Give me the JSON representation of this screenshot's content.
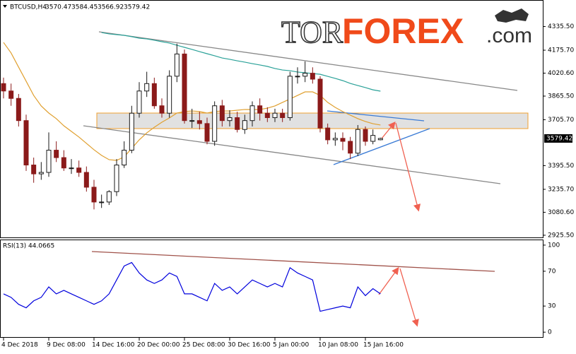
{
  "logo": {
    "part1": "TOR",
    "part2": "FOREX",
    "part3": ".com"
  },
  "chart_data": [
    {
      "type": "candlestick",
      "symbol": "BTCUSD,H4",
      "header_values": [
        3570.47,
        3584.45,
        3566.92,
        3579.42
      ],
      "ylim": [
        2906,
        4510
      ],
      "yticks": [
        {
          "value": 4335.5,
          "label": "4335.50"
        },
        {
          "value": 4175.7,
          "label": "4175.70"
        },
        {
          "value": 4020.6,
          "label": "4020.60"
        },
        {
          "value": 3865.5,
          "label": "3865.50"
        },
        {
          "value": 3705.7,
          "label": "3705.70"
        },
        {
          "value": 3395.5,
          "label": "3395.50"
        },
        {
          "value": 3235.7,
          "label": "3235.70"
        },
        {
          "value": 3080.6,
          "label": "3080.60"
        },
        {
          "value": 2925.5,
          "label": "2925.50"
        }
      ],
      "up_color": "#1a1a1a",
      "down_color": "#8b1a1a",
      "open": [
        3950,
        3900,
        3850,
        3700,
        3400,
        3340,
        3350,
        3500,
        3450,
        3380,
        3380,
        3350,
        3250,
        3150,
        3150,
        3220,
        3400,
        3500,
        3750,
        3900,
        3950,
        3800,
        3750,
        4000,
        4150,
        3700,
        3700,
        3680,
        3560,
        3800,
        3700,
        3720,
        3640,
        3700,
        3800,
        3750,
        3720,
        3750,
        3720,
        4000,
        4000,
        4020,
        3980,
        3650,
        3570,
        3580,
        3560,
        3480,
        3640,
        3560,
        3570.47
      ],
      "high": [
        3990,
        3950,
        3880,
        3740,
        3450,
        3420,
        3620,
        3560,
        3500,
        3440,
        3430,
        3390,
        3300,
        3200,
        3230,
        3440,
        3560,
        3800,
        3960,
        4030,
        3990,
        3850,
        4040,
        4220,
        4180,
        3780,
        3760,
        3720,
        3830,
        3840,
        3770,
        3760,
        3740,
        3830,
        3850,
        3790,
        3780,
        3780,
        4030,
        4060,
        4100,
        4060,
        4000,
        3680,
        3620,
        3620,
        3590,
        3670,
        3660,
        3640,
        3584.45
      ],
      "low": [
        3850,
        3800,
        3660,
        3360,
        3280,
        3300,
        3320,
        3420,
        3360,
        3340,
        3320,
        3220,
        3100,
        3110,
        3130,
        3190,
        3380,
        3480,
        3720,
        3860,
        3780,
        3720,
        3720,
        3960,
        3680,
        3650,
        3640,
        3540,
        3530,
        3660,
        3660,
        3620,
        3610,
        3660,
        3700,
        3690,
        3690,
        3690,
        3700,
        3950,
        3960,
        3950,
        3620,
        3540,
        3530,
        3500,
        3440,
        3460,
        3530,
        3540,
        3566.92
      ],
      "close": [
        3900,
        3850,
        3700,
        3400,
        3340,
        3350,
        3500,
        3450,
        3380,
        3380,
        3350,
        3250,
        3150,
        3150,
        3220,
        3400,
        3500,
        3750,
        3900,
        3950,
        3800,
        3750,
        4000,
        4150,
        3700,
        3700,
        3680,
        3560,
        3800,
        3700,
        3720,
        3640,
        3700,
        3800,
        3750,
        3720,
        3750,
        3720,
        4000,
        4000,
        4020,
        3980,
        3650,
        3570,
        3580,
        3560,
        3480,
        3640,
        3560,
        3600,
        3579.42
      ],
      "series": [
        {
          "color": "#2aa198",
          "values": [
            null,
            null,
            null,
            null,
            null,
            null,
            null,
            null,
            null,
            null,
            null,
            null,
            null,
            4295,
            4286,
            4281,
            4276,
            4267,
            4257,
            4252,
            4243,
            4233,
            4224,
            4209,
            4195,
            4181,
            4166,
            4152,
            4138,
            4123,
            4114,
            4104,
            4095,
            4085,
            4076,
            4066,
            4052,
            4042,
            4037,
            4028,
            4023,
            4018,
            4013,
            3999,
            3985,
            3970,
            3951,
            3937,
            3923,
            3908,
            3899
          ]
        },
        {
          "color": "#e0a030",
          "values": [
            4228,
            4157,
            4061,
            3966,
            3870,
            3799,
            3751,
            3713,
            3665,
            3627,
            3589,
            3546,
            3503,
            3465,
            3436,
            3431,
            3455,
            3512,
            3570,
            3617,
            3655,
            3689,
            3718,
            3751,
            3761,
            3765,
            3761,
            3751,
            3761,
            3765,
            3765,
            3770,
            3775,
            3775,
            3775,
            3784,
            3799,
            3823,
            3846,
            3870,
            3894,
            3894,
            3870,
            3823,
            3789,
            3761,
            3737,
            3713,
            3694,
            3679,
            3670
          ]
        }
      ]
    },
    {
      "type": "line",
      "title": "RSI(13) 44.0665",
      "ylim": [
        -6.4,
        105.6
      ],
      "yticks": [
        100,
        70,
        30,
        0
      ],
      "color": "#0000dd",
      "values": [
        44,
        40,
        32,
        28,
        36,
        40,
        52,
        44,
        48,
        44,
        40,
        36,
        32,
        36,
        44,
        60,
        76,
        80,
        68,
        60,
        56,
        60,
        68,
        64,
        44,
        44,
        40,
        36,
        56,
        48,
        52,
        44,
        52,
        60,
        56,
        52,
        56,
        52,
        74,
        68,
        64,
        60,
        24,
        26,
        28,
        30,
        28,
        52,
        42,
        50,
        44.0665
      ],
      "xticks": [
        {
          "value": 0,
          "label": "4 Dec 2018"
        },
        {
          "value": 6,
          "label": "9 Dec 08:00"
        },
        {
          "value": 12,
          "label": "14 Dec 16:00"
        },
        {
          "value": 18,
          "label": "20 Dec 00:00"
        },
        {
          "value": 24,
          "label": "25 Dec 08:00"
        },
        {
          "value": 30,
          "label": "30 Dec 16:00"
        },
        {
          "value": 36,
          "label": "5 Jan 00:00"
        },
        {
          "value": 42,
          "label": "10 Jan 08:00"
        },
        {
          "value": 48,
          "label": "15 Jan 16:00"
        }
      ]
    }
  ]
}
